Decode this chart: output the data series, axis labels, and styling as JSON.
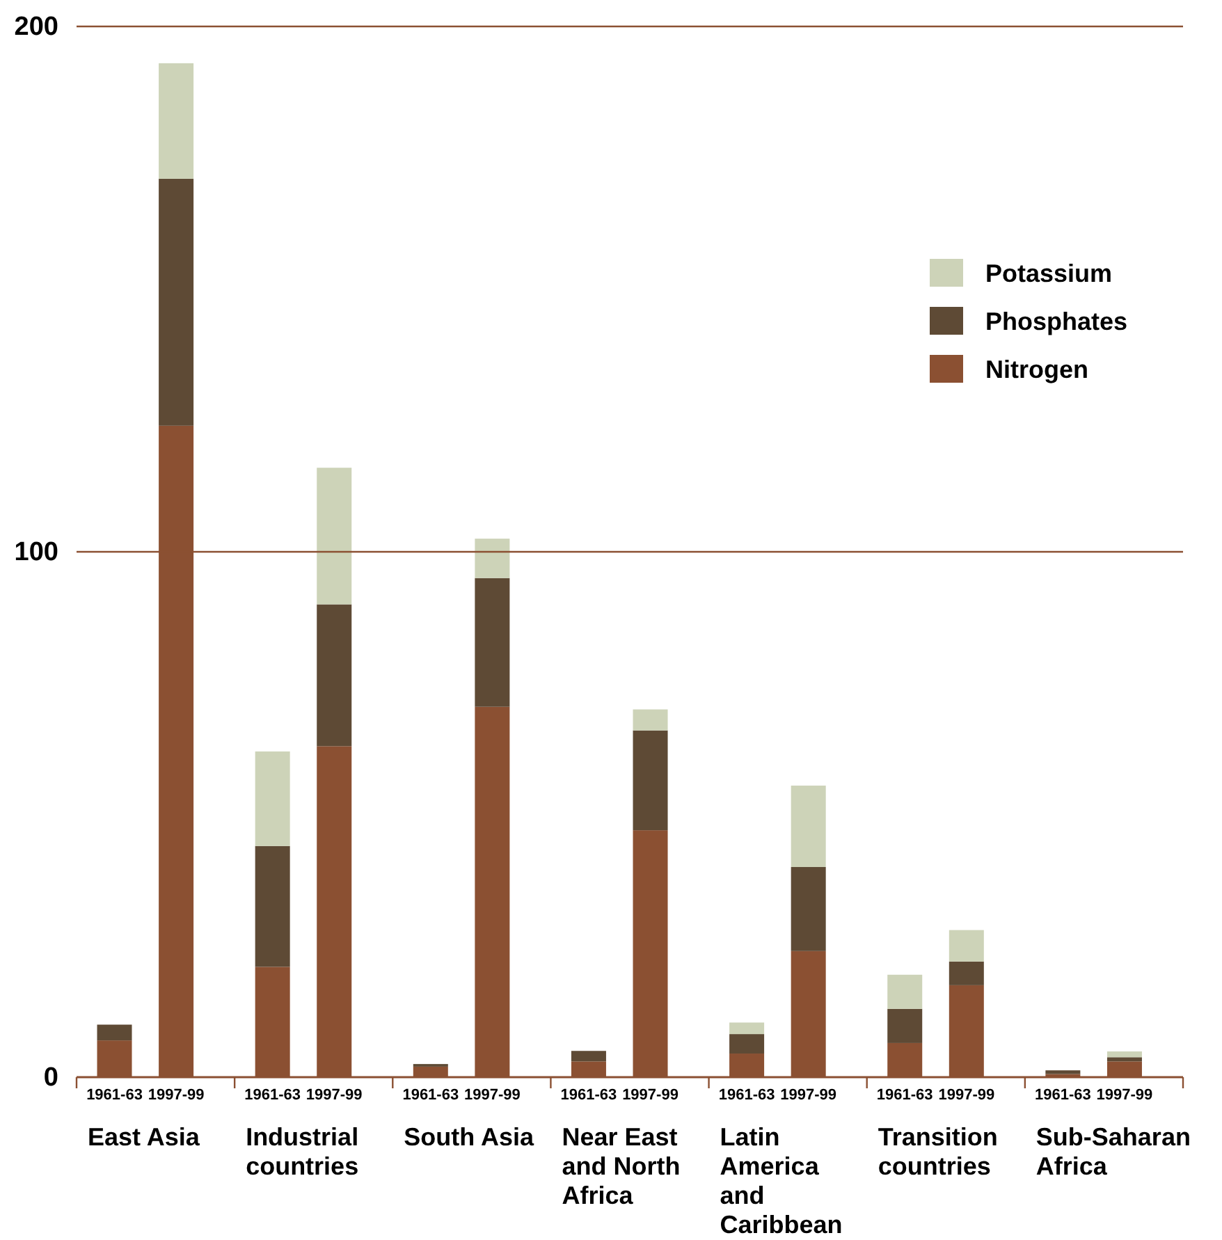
{
  "chart_data": {
    "type": "bar",
    "stacked": true,
    "categories": [
      "1961-63",
      "1997-99",
      "1961-63",
      "1997-99",
      "1961-63",
      "1997-99",
      "1961-63",
      "1997-99",
      "1961-63",
      "1997-99",
      "1961-63",
      "1997-99",
      "1961-63",
      "1997-99"
    ],
    "series": [
      {
        "name": "Nitrogen",
        "color": "#8b5032",
        "values": [
          7,
          124,
          21,
          63,
          2,
          70.5,
          3,
          47,
          4.5,
          24,
          6.5,
          17.5,
          0.6,
          3
        ]
      },
      {
        "name": "Phosphates",
        "color": "#5e4a35",
        "values": [
          3,
          47,
          23,
          27,
          0.5,
          24.5,
          2,
          19,
          3.7,
          16,
          6.5,
          4.5,
          0.7,
          0.8
        ]
      },
      {
        "name": "Potassium",
        "color": "#cdd3b8",
        "values": [
          null,
          22,
          18,
          26,
          null,
          7.5,
          null,
          4,
          2.2,
          15.5,
          6.5,
          6,
          null,
          1.1
        ]
      }
    ],
    "annotations": [
      "East Asia",
      "Industrial countries",
      "South Asia",
      "Near East and North Africa",
      "Latin America and Caribbean",
      "Transition countries",
      "Sub-Saharan Africa"
    ],
    "ylim": [
      0,
      200
    ],
    "yticks": [
      0,
      100,
      200
    ],
    "ref_lines": [
      {
        "axis": "y",
        "value": 100,
        "color": "#8b5032"
      },
      {
        "axis": "y",
        "value": 200,
        "color": "#8b5032"
      }
    ],
    "legend": "top right"
  }
}
